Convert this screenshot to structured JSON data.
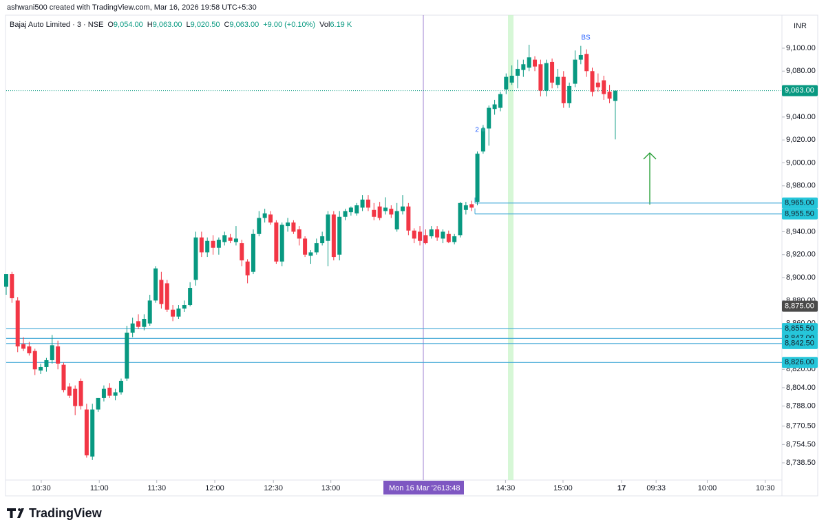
{
  "header": "ashwani500 created with TradingView.com, Mar 16, 2026 19:58 UTC+5:30",
  "chart_data": {
    "type": "candlestick",
    "title": "Bajaj Auto Limited · 3 · NSE",
    "ohlc": [
      {
        "label": "O",
        "value": "9,054.00"
      },
      {
        "label": "H",
        "value": "9,063.00"
      },
      {
        "label": "L",
        "value": "9,020.50"
      },
      {
        "label": "C",
        "value": "9,063.00"
      }
    ],
    "change": "+9.00 (+0.10%)",
    "volume": {
      "label": "Vol",
      "value": "6.19 K"
    },
    "currency": "INR",
    "up_color": "#089981",
    "down_color": "#f23645",
    "open": [
      8892,
      8903,
      8880,
      8842,
      8840,
      8836,
      8819,
      8822,
      8828,
      8840,
      8824,
      8805,
      8803,
      8810,
      8785,
      8744,
      8785,
      8795,
      8804,
      8797,
      8800,
      8812,
      8852,
      8862,
      8857,
      8860,
      8880,
      8898,
      8895,
      8872,
      8866,
      8873,
      8876,
      8898,
      8935,
      8922,
      8932,
      8926,
      8931,
      8935,
      8931,
      8930,
      8914,
      8905,
      8938,
      8952,
      8955,
      8948,
      8914,
      8945,
      8948,
      8942,
      8934,
      8919,
      8922,
      8930,
      8932,
      8955,
      8920,
      8953,
      8957,
      8956,
      8961,
      8968,
      8959,
      8962,
      8958,
      8960,
      8942,
      8958,
      8962,
      8941,
      8940,
      8937,
      8936,
      8942,
      8934,
      8938,
      8931,
      8937,
      8959,
      8964,
      8966,
      9010,
      9030,
      9047,
      9048,
      9064,
      9070,
      9076,
      9081,
      9083,
      9090,
      9086,
      9063,
      9088,
      9068,
      9075,
      9052,
      9069,
      9090,
      9095,
      9080,
      9070,
      9072,
      9062,
      9054
    ],
    "high": [
      8903,
      8905,
      8883,
      8848,
      8844,
      8838,
      8825,
      8830,
      8850,
      8845,
      8826,
      8808,
      8806,
      8812,
      8790,
      8790,
      8795,
      8806,
      8808,
      8803,
      8812,
      8858,
      8865,
      8868,
      8868,
      8885,
      8910,
      8905,
      8898,
      8876,
      8876,
      8880,
      8896,
      8940,
      8940,
      8935,
      8937,
      8935,
      8940,
      8938,
      8945,
      8933,
      8916,
      8942,
      8958,
      8960,
      8958,
      8950,
      8948,
      8952,
      8950,
      8945,
      8936,
      8924,
      8934,
      8940,
      8958,
      8958,
      8958,
      8960,
      8962,
      8965,
      8972,
      8972,
      8965,
      8966,
      8970,
      8963,
      8965,
      8972,
      8965,
      8943,
      8945,
      8942,
      8945,
      8945,
      8942,
      8941,
      8938,
      8966,
      8966,
      8967,
      9010,
      9033,
      9050,
      9055,
      9062,
      9078,
      9085,
      9090,
      9090,
      9103,
      9093,
      9090,
      9090,
      9091,
      9082,
      9080,
      9070,
      9098,
      9102,
      9099,
      9083,
      9078,
      9076,
      9068,
      9063
    ],
    "low": [
      8885,
      8878,
      8835,
      8836,
      8832,
      8815,
      8816,
      8818,
      8825,
      8820,
      8800,
      8795,
      8780,
      8785,
      8743,
      8741,
      8783,
      8792,
      8795,
      8793,
      8798,
      8810,
      8848,
      8855,
      8854,
      8858,
      8878,
      8873,
      8870,
      8862,
      8864,
      8870,
      8875,
      8893,
      8918,
      8918,
      8920,
      8920,
      8928,
      8930,
      8928,
      8910,
      8895,
      8903,
      8936,
      8948,
      8946,
      8912,
      8910,
      8940,
      8938,
      8928,
      8918,
      8912,
      8920,
      8928,
      8910,
      8915,
      8915,
      8950,
      8954,
      8954,
      8958,
      8958,
      8950,
      8950,
      8955,
      8952,
      8940,
      8955,
      8937,
      8930,
      8928,
      8929,
      8934,
      8932,
      8930,
      8930,
      8929,
      8935,
      8955,
      8958,
      8963,
      9008,
      9015,
      9042,
      9045,
      9060,
      9068,
      9065,
      9075,
      9080,
      9080,
      9058,
      9058,
      9065,
      9065,
      9048,
      9048,
      9066,
      9086,
      9075,
      9058,
      9062,
      9055,
      9052,
      9020.5
    ],
    "close": [
      8903,
      8882,
      8840,
      8838,
      8834,
      8820,
      8822,
      8828,
      8841,
      8825,
      8802,
      8797,
      8788,
      8788,
      8745,
      8785,
      8795,
      8803,
      8797,
      8800,
      8810,
      8852,
      8860,
      8857,
      8864,
      8880,
      8908,
      8877,
      8872,
      8866,
      8873,
      8876,
      8891,
      8935,
      8922,
      8932,
      8926,
      8933,
      8937,
      8932,
      8934,
      8915,
      8902,
      8938,
      8952,
      8956,
      8948,
      8914,
      8946,
      8948,
      8940,
      8934,
      8920,
      8922,
      8930,
      8936,
      8955,
      8918,
      8953,
      8958,
      8961,
      8963,
      8968,
      8961,
      8953,
      8952,
      8961,
      8955,
      8958,
      8962,
      8941,
      8934,
      8932,
      8930,
      8942,
      8935,
      8940,
      8931,
      8936,
      8965,
      8963,
      8961,
      9008,
      9030,
      9048,
      9051,
      9060,
      9075,
      9076,
      9082,
      9086,
      9092,
      9084,
      9063,
      9087,
      9070,
      9075,
      9052,
      9067,
      9090,
      9094,
      9080,
      9062,
      9066,
      9060,
      9056,
      9063
    ],
    "xlim": [
      0,
      135
    ],
    "xticks": [
      {
        "value": 6.1,
        "label": "10:30"
      },
      {
        "value": 16.2,
        "label": "11:00"
      },
      {
        "value": 26.2,
        "label": "11:30"
      },
      {
        "value": 36.3,
        "label": "12:00"
      },
      {
        "value": 46.5,
        "label": "12:30"
      },
      {
        "value": 56.5,
        "label": "13:00"
      },
      {
        "value": 86.9,
        "label": "14:30"
      },
      {
        "value": 96.9,
        "label": "15:00"
      },
      {
        "value": 107.1,
        "label": "17"
      },
      {
        "value": 113.1,
        "label": "09:33"
      },
      {
        "value": 122,
        "label": "10:00"
      },
      {
        "value": 132.1,
        "label": "10:30"
      }
    ],
    "ylim": [
      8723.5,
      9128.8
    ],
    "yticks": [
      {
        "value": 9100,
        "label": "9,100.00"
      },
      {
        "value": 9080,
        "label": "9,080.00"
      },
      {
        "value": 9040,
        "label": "9,040.00"
      },
      {
        "value": 9020,
        "label": "9,020.00"
      },
      {
        "value": 9000,
        "label": "9,000.00"
      },
      {
        "value": 8980,
        "label": "8,980.00"
      },
      {
        "value": 8940,
        "label": "8,940.00"
      },
      {
        "value": 8920,
        "label": "8,920.00"
      },
      {
        "value": 8900,
        "label": "8,900.00"
      },
      {
        "value": 8880,
        "label": "8,880.00"
      },
      {
        "value": 8860,
        "label": "8,860.00"
      },
      {
        "value": 8820,
        "label": "8,820.00"
      },
      {
        "value": 8804,
        "label": "8,804.00"
      },
      {
        "value": 8788,
        "label": "8,788.00"
      },
      {
        "value": 8770.5,
        "label": "8,770.50"
      },
      {
        "value": 8754.5,
        "label": "8,754.50"
      },
      {
        "value": 8738.5,
        "label": "8,738.50"
      }
    ],
    "price_lines": [
      {
        "value": 8965,
        "label": "8,965.00"
      },
      {
        "value": 8955.5,
        "label": "8,955.50"
      },
      {
        "value": 8855.5,
        "label": "8,855.50"
      },
      {
        "value": 8847,
        "label": "8,847.00"
      },
      {
        "value": 8842.5,
        "label": "8,842.50"
      },
      {
        "value": 8826,
        "label": "8,826.00"
      }
    ],
    "line_color": "#3fa7d6",
    "last_price": {
      "value": 9063,
      "label": "9,063.00"
    },
    "crosshair": {
      "price": {
        "value": 8875,
        "label": "8,875.00"
      },
      "date": "Mon 16 Mar '26",
      "time": "13:48"
    },
    "markers": [
      "BS",
      "2"
    ]
  },
  "footer": "TradingView"
}
